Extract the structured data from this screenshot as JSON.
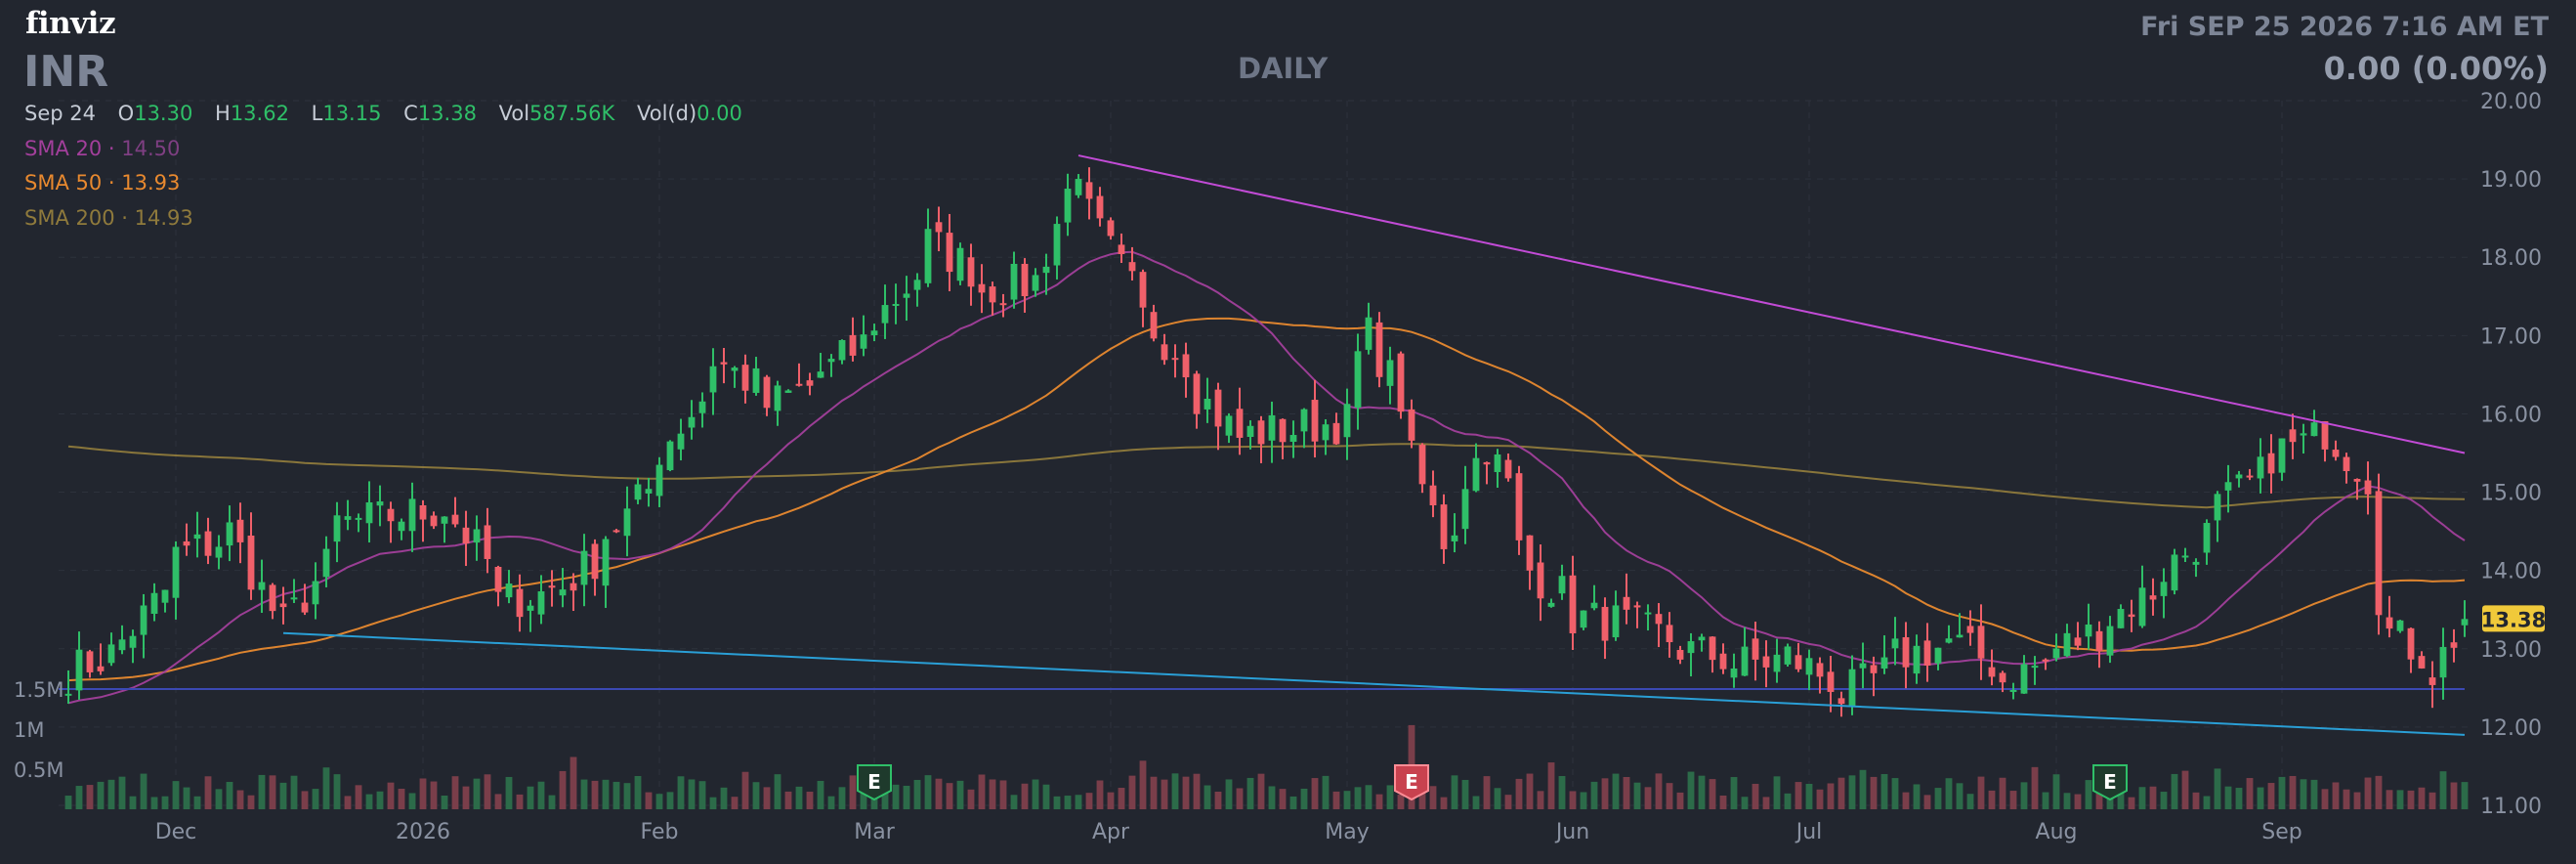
{
  "header": {
    "logo": "finviz",
    "ticker": "INR",
    "timeframe": "DAILY",
    "datetime": "Fri SEP 25 2026 7:16 AM ET",
    "change": "0.00 (0.00%)"
  },
  "ohlc": {
    "date": "Sep 24",
    "open_label": "O",
    "open": "13.30",
    "high_label": "H",
    "high": "13.62",
    "low_label": "L",
    "low": "13.15",
    "close_label": "C",
    "close": "13.38",
    "vol_label": "Vol",
    "vol": "587.56K",
    "vold_label": "Vol(d)",
    "vold": "0.00"
  },
  "indicators": [
    {
      "label": "SMA 20",
      "value": "14.50",
      "color": "#a23f9b",
      "value_color": "#7e3f82"
    },
    {
      "label": "SMA 50",
      "value": "13.93",
      "color": "#e8892f",
      "value_color": "#e8892f"
    },
    {
      "label": "SMA 200",
      "value": "14.93",
      "color": "#8f7a3c",
      "value_color": "#8f7a3c"
    }
  ],
  "colors": {
    "background": "#22262f",
    "up": "#2fbf68",
    "down": "#f0606a",
    "grid": "#2d323c",
    "trend_upper": "#c24bd6",
    "trend_lower": "#2a9fd6",
    "volume_avg": "#3b49b3",
    "last_price_badge": "#f0c93a"
  },
  "chart_data": {
    "type": "candlestick",
    "x_axis_labels": [
      "Dec",
      "2026",
      "Feb",
      "Mar",
      "Apr",
      "May",
      "Jun",
      "Jul",
      "Aug",
      "Sep"
    ],
    "price_axis_ticks": [
      "20.00",
      "19.00",
      "18.00",
      "17.00",
      "16.00",
      "15.00",
      "14.00",
      "13.00",
      "12.00",
      "11.00"
    ],
    "ylim": [
      11,
      20
    ],
    "volume_axis_ticks": [
      "1.5M",
      "1M",
      "0.5M"
    ],
    "last_price": "13.38",
    "earnings_markers": [
      {
        "label": "E",
        "date": "2026-03-02",
        "type": "positive"
      },
      {
        "label": "E",
        "date": "2026-05-11",
        "type": "negative"
      },
      {
        "label": "E",
        "date": "2026-08-10",
        "type": "positive"
      }
    ],
    "candle_anchors": [
      [
        "2025-11-17",
        12.7
      ],
      [
        "2025-11-24",
        13.1
      ],
      [
        "2025-12-01",
        14.2
      ],
      [
        "2025-12-08",
        14.5
      ],
      [
        "2025-12-12",
        13.5
      ],
      [
        "2025-12-15",
        13.3
      ],
      [
        "2025-12-22",
        14.6
      ],
      [
        "2026-01-05",
        14.8
      ],
      [
        "2026-01-12",
        13.6
      ],
      [
        "2026-01-20",
        13.8
      ],
      [
        "2026-01-28",
        14.7
      ],
      [
        "2026-02-03",
        15.7
      ],
      [
        "2026-02-09",
        16.7
      ],
      [
        "2026-02-16",
        16.1
      ],
      [
        "2026-02-24",
        16.6
      ],
      [
        "2026-03-02",
        17.2
      ],
      [
        "2026-03-09",
        18.2
      ],
      [
        "2026-03-16",
        17.6
      ],
      [
        "2026-03-23",
        17.7
      ],
      [
        "2026-03-27",
        19.2
      ],
      [
        "2026-04-03",
        17.6
      ],
      [
        "2026-04-10",
        16.7
      ],
      [
        "2026-04-17",
        15.7
      ],
      [
        "2026-04-24",
        15.8
      ],
      [
        "2026-05-01",
        15.9
      ],
      [
        "2026-05-05",
        17.0
      ],
      [
        "2026-05-11",
        15.4
      ],
      [
        "2026-05-14",
        14.4
      ],
      [
        "2026-05-20",
        15.6
      ],
      [
        "2026-05-26",
        14.0
      ],
      [
        "2026-06-01",
        13.4
      ],
      [
        "2026-06-08",
        13.3
      ],
      [
        "2026-06-15",
        13.0
      ],
      [
        "2026-06-22",
        12.8
      ],
      [
        "2026-06-29",
        12.9
      ],
      [
        "2026-07-06",
        12.4
      ],
      [
        "2026-07-13",
        12.9
      ],
      [
        "2026-07-20",
        13.1
      ],
      [
        "2026-07-27",
        12.6
      ],
      [
        "2026-08-03",
        13.0
      ],
      [
        "2026-08-10",
        13.4
      ],
      [
        "2026-08-17",
        14.0
      ],
      [
        "2026-08-24",
        14.8
      ],
      [
        "2026-08-31",
        15.5
      ],
      [
        "2026-09-07",
        15.8
      ],
      [
        "2026-09-11",
        15.2
      ],
      [
        "2026-09-15",
        13.2
      ],
      [
        "2026-09-21",
        12.7
      ],
      [
        "2026-09-24",
        13.38
      ]
    ],
    "trendlines": [
      {
        "name": "resistance",
        "start": [
          "2026-03-27",
          19.3
        ],
        "end": [
          "2026-09-24",
          15.5
        ]
      },
      {
        "name": "support",
        "start": [
          "2025-12-15",
          13.2
        ],
        "end": [
          "2026-09-24",
          11.9
        ]
      }
    ],
    "volume_average": "1.5M"
  }
}
